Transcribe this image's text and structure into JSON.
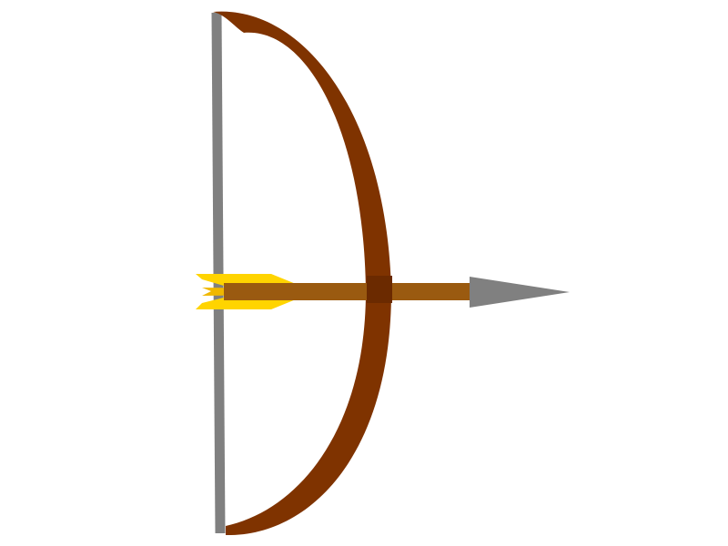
{
  "scene": {
    "subject": "bow-and-arrow",
    "icons": [
      "bow-icon",
      "arrow-icon"
    ],
    "colors": {
      "background": "#ffffff",
      "bow_limb": "#7f3300",
      "bow_grip": "#6b2a00",
      "bow_string": "#808080",
      "arrow_shaft": "#9a5a10",
      "arrow_head": "#808080",
      "fletching": "#ffd400",
      "fletching_edge": "#f0b800"
    }
  }
}
